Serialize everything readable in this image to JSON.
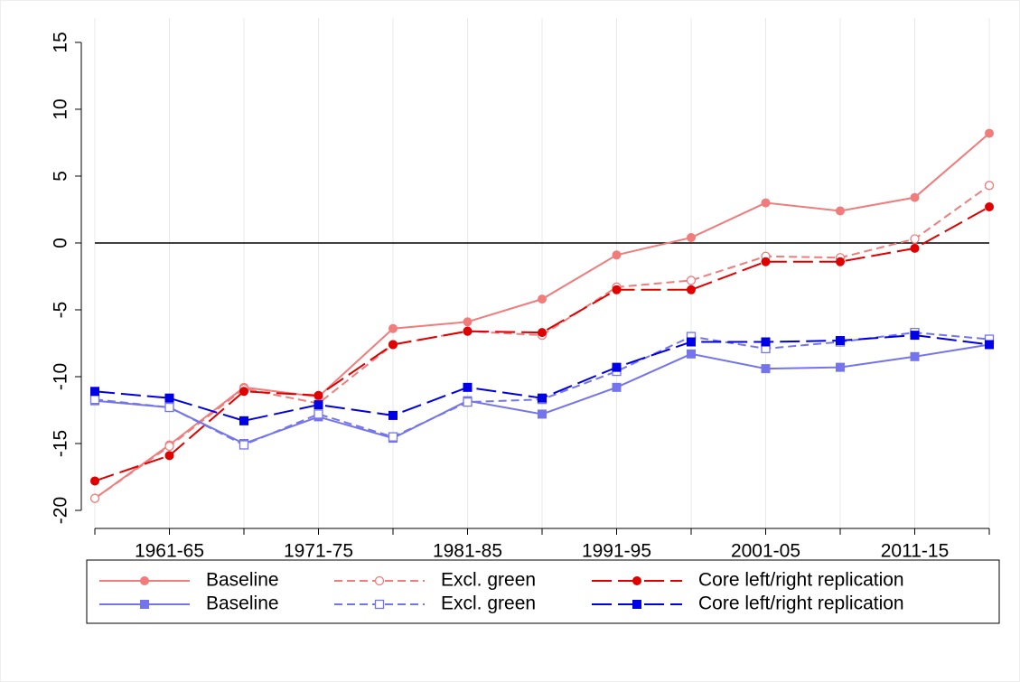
{
  "chart_data": {
    "type": "line",
    "categories": [
      null,
      "1961-65",
      null,
      "1971-75",
      null,
      "1981-85",
      null,
      "1991-95",
      null,
      "2001-05",
      null,
      "2011-15",
      null
    ],
    "ylim": [
      -21.35,
      16.82
    ],
    "yticks": [
      -20,
      -15,
      -10,
      -5,
      0,
      5,
      10,
      15
    ],
    "reference_line": 0,
    "grid": true,
    "legend_position": "bottom",
    "series": [
      {
        "name": "Baseline",
        "color": "#f07c7c",
        "dash": "solid",
        "marker": "circle",
        "values": [
          -19.1,
          -15.1,
          -10.8,
          -11.5,
          -6.4,
          -5.9,
          -4.2,
          -0.9,
          0.4,
          3.0,
          2.4,
          3.4,
          8.2
        ]
      },
      {
        "name": "Excl. green",
        "color": "#f07c7c",
        "dash": "short",
        "marker": "hollow-circle",
        "values": [
          -19.1,
          -15.2,
          -10.9,
          -12.0,
          -7.6,
          -6.6,
          -6.9,
          -3.3,
          -2.8,
          -1.0,
          -1.1,
          0.3,
          4.3
        ]
      },
      {
        "name": "Core left/right replication",
        "color": "#e00000",
        "dash": "long",
        "marker": "circle",
        "values": [
          -17.8,
          -15.9,
          -11.1,
          -11.4,
          -7.6,
          -6.6,
          -6.7,
          -3.5,
          -3.5,
          -1.4,
          -1.4,
          -0.4,
          2.7
        ]
      },
      {
        "name": "Baseline",
        "color": "#7474ee",
        "dash": "solid",
        "marker": "square",
        "values": [
          -11.8,
          -12.3,
          -15.0,
          -13.0,
          -14.6,
          -11.8,
          -12.8,
          -10.8,
          -8.3,
          -9.4,
          -9.3,
          -8.5,
          -7.6
        ]
      },
      {
        "name": "Excl. green",
        "color": "#7474ee",
        "dash": "short",
        "marker": "hollow-square",
        "values": [
          -11.7,
          -12.3,
          -15.1,
          -12.8,
          -14.5,
          -11.9,
          -11.7,
          -9.6,
          -7.0,
          -7.9,
          -7.4,
          -6.7,
          -7.2
        ]
      },
      {
        "name": "Core left/right replication",
        "color": "#0000e6",
        "dash": "long",
        "marker": "square",
        "values": [
          -11.1,
          -11.6,
          -13.3,
          -12.1,
          -12.9,
          -10.8,
          -11.6,
          -9.3,
          -7.4,
          -7.4,
          -7.3,
          -6.9,
          -7.6
        ]
      }
    ]
  }
}
